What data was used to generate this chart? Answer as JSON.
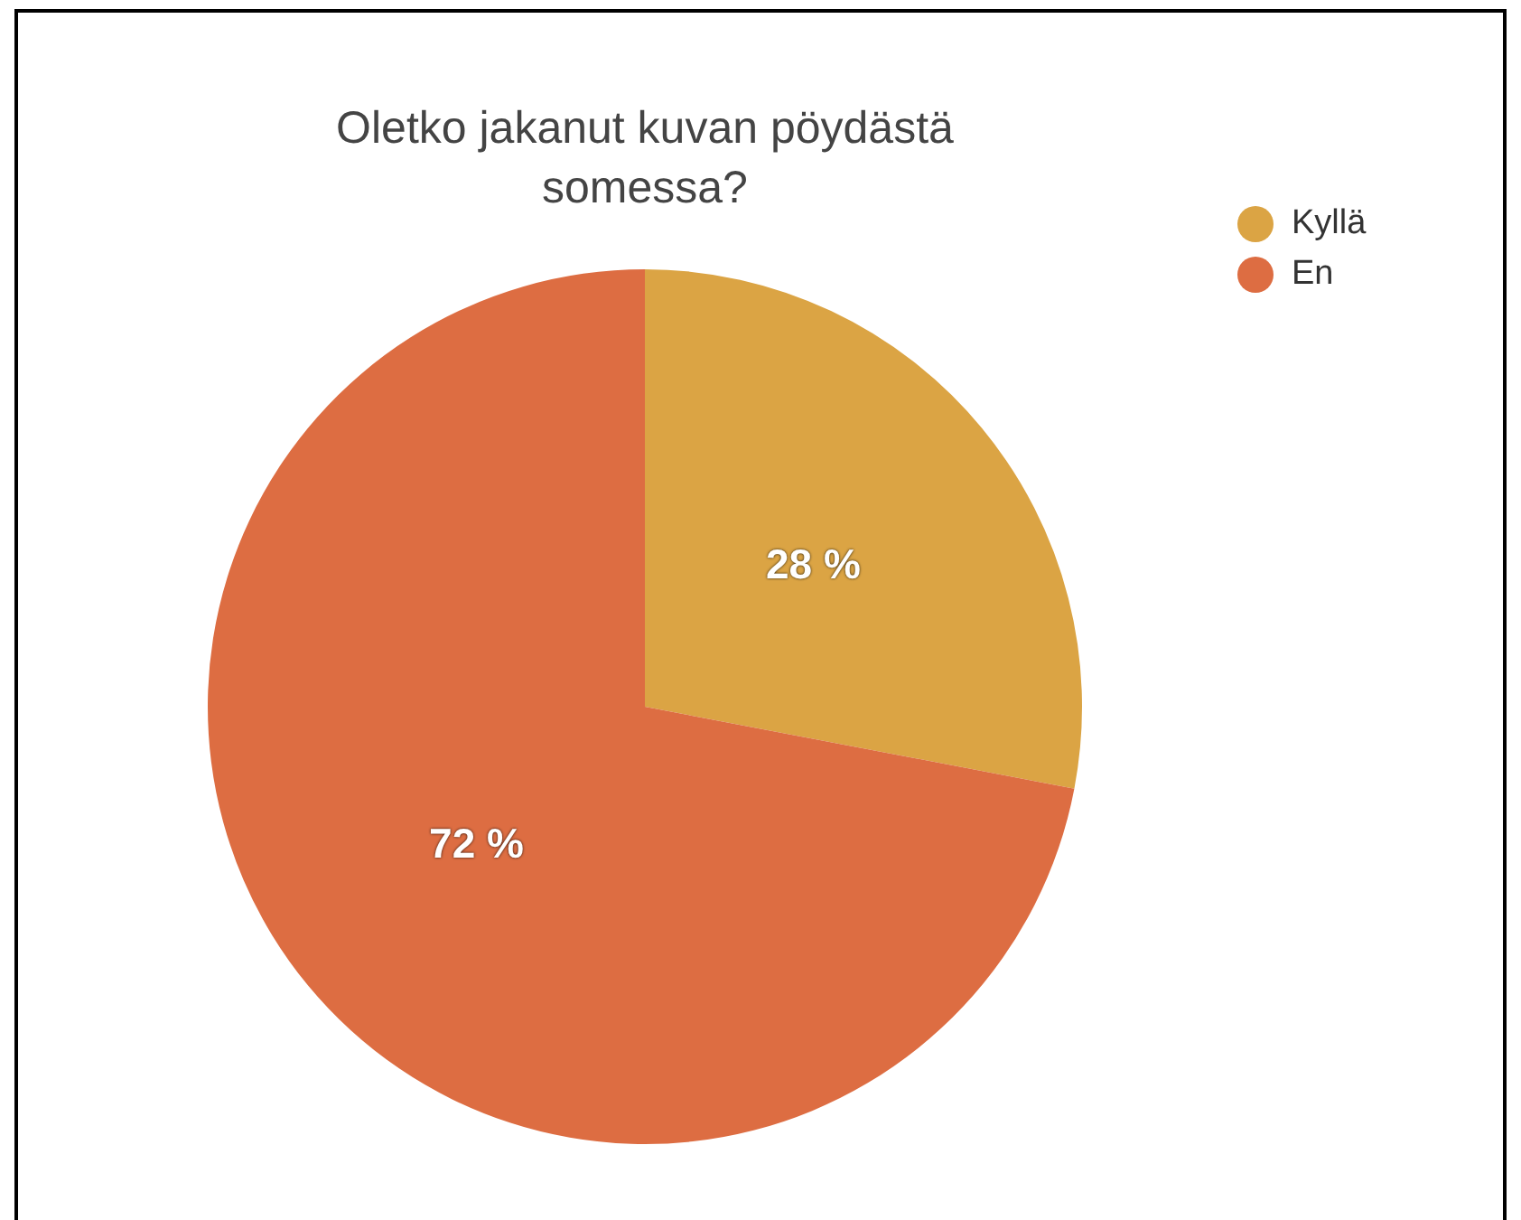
{
  "chart_data": {
    "type": "pie",
    "title": "Oletko jakanut kuvan pöydästä somessa?",
    "categories": [
      "Kyllä",
      "En"
    ],
    "values": [
      28,
      72
    ],
    "colors": [
      "#dba444",
      "#dd6d42"
    ],
    "value_labels": [
      "28 %",
      "72 %"
    ],
    "legend": "top right"
  }
}
